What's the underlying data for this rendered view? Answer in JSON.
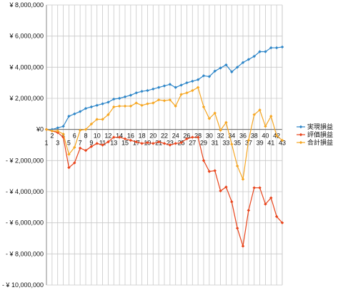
{
  "chart_data": {
    "type": "line",
    "title": "",
    "xlabel": "",
    "ylabel": "",
    "grid": true,
    "legend_position": "right",
    "ylim": [
      -10000000,
      8000000
    ],
    "y_ticks": [
      {
        "value": 8000000,
        "label": "¥ 8,000,000"
      },
      {
        "value": 6000000,
        "label": "¥ 6,000,000"
      },
      {
        "value": 4000000,
        "label": "¥ 4,000,000"
      },
      {
        "value": 2000000,
        "label": "¥ 2,000,000"
      },
      {
        "value": 0,
        "label": "¥0"
      },
      {
        "value": -2000000,
        "label": "- ¥ 2,000,000"
      },
      {
        "value": -4000000,
        "label": "- ¥ 4,000,000"
      },
      {
        "value": -6000000,
        "label": "- ¥ 6,000,000"
      },
      {
        "value": -8000000,
        "label": "- ¥ 8,000,000"
      },
      {
        "value": -10000000,
        "label": "- ¥ 10,000,000"
      }
    ],
    "x": [
      1,
      2,
      3,
      4,
      5,
      6,
      7,
      8,
      9,
      10,
      11,
      12,
      13,
      14,
      15,
      16,
      17,
      18,
      19,
      20,
      21,
      22,
      23,
      24,
      25,
      26,
      27,
      28,
      29,
      30,
      31,
      32,
      33,
      34,
      35,
      36,
      37,
      38,
      39,
      40,
      41,
      42,
      43
    ],
    "x_tick_labels": [
      "1",
      "2",
      "3",
      "4",
      "5",
      "6",
      "7",
      "8",
      "9",
      "10",
      "11",
      "12",
      "13",
      "14",
      "15",
      "16",
      "17",
      "18",
      "19",
      "20",
      "21",
      "22",
      "23",
      "24",
      "25",
      "26",
      "27",
      "28",
      "29",
      "30",
      "31",
      "32",
      "33",
      "34",
      "35",
      "36",
      "37",
      "38",
      "39",
      "40",
      "41",
      "42",
      "43"
    ],
    "series": [
      {
        "name": "実現損益",
        "color": "#2e86c8",
        "values": [
          0,
          0,
          100000,
          200000,
          850000,
          1000000,
          1150000,
          1350000,
          1450000,
          1550000,
          1650000,
          1750000,
          1950000,
          2000000,
          2100000,
          2200000,
          2350000,
          2450000,
          2500000,
          2600000,
          2700000,
          2800000,
          2900000,
          2700000,
          2850000,
          3000000,
          3100000,
          3200000,
          3450000,
          3400000,
          3750000,
          3950000,
          4150000,
          3700000,
          4000000,
          4300000,
          4500000,
          4700000,
          5000000,
          5000000,
          5250000,
          5250000,
          5300000
        ]
      },
      {
        "name": "評価損益",
        "color": "#e8431a",
        "values": [
          0,
          -100000,
          -200000,
          -500000,
          -2450000,
          -2150000,
          -1200000,
          -1350000,
          -1100000,
          -900000,
          -1000000,
          -800000,
          -500000,
          -500000,
          -600000,
          -700000,
          -800000,
          -900000,
          -850000,
          -900000,
          -800000,
          -900000,
          -1000000,
          -900000,
          -850000,
          -600000,
          -500000,
          -500000,
          -2000000,
          -2700000,
          -2650000,
          -3950000,
          -3700000,
          -4650000,
          -6350000,
          -7500000,
          -5200000,
          -3750000,
          -3750000,
          -4800000,
          -4400000,
          -5600000,
          -6000000
        ]
      },
      {
        "name": "合計損益",
        "color": "#f5a623",
        "values": [
          0,
          -100000,
          -100000,
          -300000,
          -1600000,
          -1150000,
          -50000,
          0,
          350000,
          650000,
          650000,
          950000,
          1450000,
          1500000,
          1500000,
          1500000,
          1700000,
          1550000,
          1650000,
          1700000,
          1900000,
          1850000,
          1900000,
          1500000,
          2250000,
          2350000,
          2500000,
          2700000,
          1450000,
          700000,
          1050000,
          -50000,
          450000,
          -950000,
          -2350000,
          -3200000,
          -700000,
          950000,
          1250000,
          200000,
          850000,
          -400000,
          -700000
        ]
      }
    ]
  }
}
